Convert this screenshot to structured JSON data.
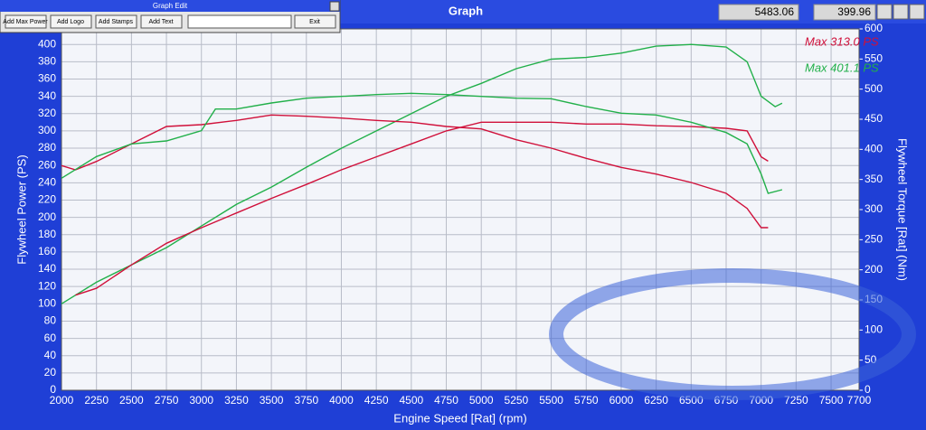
{
  "window": {
    "title": "Graph",
    "readouts": [
      "5483.06",
      "399.96"
    ]
  },
  "toolbar": {
    "title": "Graph Edit",
    "buttons": [
      "Add Max Power",
      "Add Logo",
      "Add Stamps",
      "Add Text"
    ],
    "exit": "Exit"
  },
  "chart_data": {
    "type": "line",
    "xlabel": "Engine Speed [Rat] (rpm)",
    "ylabel": "Flywheel Power (PS)",
    "y2label": "Flywheel Torque [Rat] (Nm)",
    "annotations": [
      {
        "text": "Max 313.0 PS",
        "color": "#d0103a"
      },
      {
        "text": "Max 401.1 PS",
        "color": "#22b04a"
      }
    ],
    "xlim": [
      2000,
      7700
    ],
    "xticks": [
      2000,
      2250,
      2500,
      2750,
      3000,
      3250,
      3500,
      3750,
      4000,
      4250,
      4500,
      4750,
      5000,
      5250,
      5500,
      5750,
      6000,
      6250,
      6500,
      6750,
      7000,
      7250,
      7500,
      7700
    ],
    "ylim": [
      0,
      418
    ],
    "yticks": [
      0,
      20,
      40,
      60,
      80,
      100,
      120,
      140,
      160,
      180,
      200,
      220,
      240,
      260,
      280,
      300,
      320,
      340,
      360,
      380,
      400
    ],
    "y2lim": [
      0,
      600
    ],
    "y2ticks": [
      0,
      50,
      100,
      150,
      200,
      250,
      300,
      350,
      400,
      450,
      500,
      550,
      600
    ],
    "grid": true,
    "series": [
      {
        "color": "#22b04a",
        "x": [
          2000,
          2250,
          2500,
          2750,
          3000,
          3250,
          3500,
          3750,
          4000,
          4250,
          4500,
          4750,
          5000,
          5250,
          5500,
          5750,
          6000,
          6250,
          6500,
          6750,
          6900,
          7000,
          7100,
          7150
        ],
        "values": [
          100,
          125,
          145,
          165,
          190,
          215,
          235,
          258,
          280,
          300,
          320,
          340,
          355,
          372,
          383,
          385,
          390,
          398,
          400,
          397,
          380,
          340,
          328,
          332
        ]
      },
      {
        "color": "#d0103a",
        "x": [
          2100,
          2250,
          2500,
          2750,
          3000,
          3250,
          3500,
          3750,
          4000,
          4250,
          4500,
          4750,
          5000,
          5250,
          5500,
          5750,
          6000,
          6250,
          6500,
          6750,
          6900,
          7000,
          7050
        ],
        "values": [
          110,
          118,
          145,
          170,
          188,
          205,
          222,
          238,
          255,
          270,
          285,
          300,
          310,
          310,
          310,
          308,
          308,
          306,
          305,
          303,
          300,
          270,
          265
        ]
      },
      {
        "color": "#d0103a",
        "axis": "y2",
        "x": [
          2000,
          2100,
          2250,
          2500,
          2750,
          3000,
          3250,
          3500,
          3750,
          4000,
          4250,
          4500,
          4750,
          5000,
          5250,
          5500,
          5750,
          6000,
          6250,
          6500,
          6750,
          6900,
          7000,
          7050
        ],
        "values": [
          373,
          366,
          380,
          409,
          438,
          441,
          448,
          457,
          455,
          452,
          448,
          445,
          438,
          434,
          416,
          402,
          385,
          370,
          359,
          345,
          327,
          302,
          270,
          270
        ]
      },
      {
        "color": "#22b04a",
        "axis": "y2",
        "x": [
          2000,
          2250,
          2500,
          2750,
          3000,
          3100,
          3250,
          3500,
          3750,
          4000,
          4250,
          4500,
          4750,
          5000,
          5250,
          5500,
          5750,
          6000,
          6250,
          6500,
          6750,
          6900,
          7000,
          7050,
          7150
        ],
        "values": [
          352,
          388,
          409,
          414,
          431,
          467,
          467,
          477,
          485,
          488,
          491,
          493,
          491,
          488,
          485,
          484,
          471,
          460,
          457,
          445,
          428,
          409,
          359,
          327,
          333
        ]
      }
    ]
  }
}
